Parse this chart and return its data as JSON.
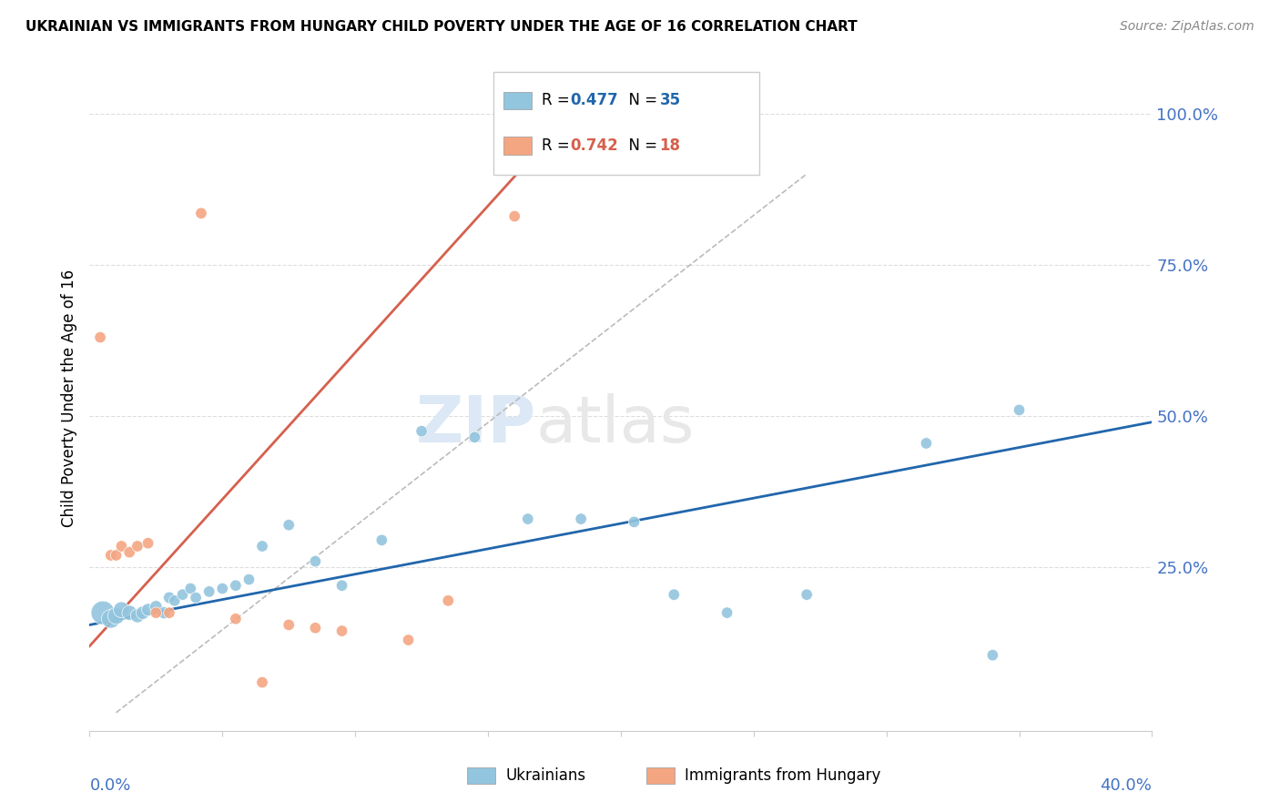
{
  "title": "UKRAINIAN VS IMMIGRANTS FROM HUNGARY CHILD POVERTY UNDER THE AGE OF 16 CORRELATION CHART",
  "source": "Source: ZipAtlas.com",
  "ylabel": "Child Poverty Under the Age of 16",
  "xlim": [
    0.0,
    0.4
  ],
  "ylim": [
    -0.02,
    1.08
  ],
  "watermark_zip": "ZIP",
  "watermark_atlas": "atlas",
  "blue_color": "#92c5de",
  "pink_color": "#f4a582",
  "line_blue_color": "#2166ac",
  "line_pink_color": "#d6604d",
  "line_gray_color": "#bbbbbb",
  "blue_scatter_x": [
    0.005,
    0.008,
    0.01,
    0.012,
    0.015,
    0.018,
    0.02,
    0.022,
    0.025,
    0.028,
    0.03,
    0.032,
    0.035,
    0.038,
    0.04,
    0.045,
    0.05,
    0.055,
    0.06,
    0.065,
    0.075,
    0.085,
    0.095,
    0.11,
    0.125,
    0.145,
    0.165,
    0.185,
    0.205,
    0.22,
    0.24,
    0.27,
    0.315,
    0.34,
    0.35
  ],
  "blue_scatter_y": [
    0.175,
    0.165,
    0.17,
    0.18,
    0.175,
    0.17,
    0.175,
    0.18,
    0.185,
    0.175,
    0.2,
    0.195,
    0.205,
    0.215,
    0.2,
    0.21,
    0.215,
    0.22,
    0.23,
    0.285,
    0.32,
    0.26,
    0.22,
    0.295,
    0.475,
    0.465,
    0.33,
    0.33,
    0.325,
    0.205,
    0.175,
    0.205,
    0.455,
    0.105,
    0.51
  ],
  "blue_scatter_size": [
    350,
    220,
    180,
    160,
    140,
    120,
    110,
    100,
    95,
    90,
    85,
    80,
    80,
    80,
    80,
    80,
    80,
    80,
    80,
    80,
    80,
    80,
    80,
    80,
    80,
    80,
    80,
    80,
    80,
    80,
    80,
    80,
    80,
    80,
    80
  ],
  "pink_scatter_x": [
    0.004,
    0.008,
    0.01,
    0.012,
    0.015,
    0.018,
    0.022,
    0.025,
    0.03,
    0.042,
    0.055,
    0.065,
    0.075,
    0.085,
    0.095,
    0.12,
    0.135,
    0.16
  ],
  "pink_scatter_y": [
    0.63,
    0.27,
    0.27,
    0.285,
    0.275,
    0.285,
    0.29,
    0.175,
    0.175,
    0.835,
    0.165,
    0.06,
    0.155,
    0.15,
    0.145,
    0.13,
    0.195,
    0.83
  ],
  "pink_scatter_size": [
    80,
    80,
    80,
    80,
    80,
    80,
    80,
    80,
    80,
    80,
    80,
    80,
    80,
    80,
    80,
    80,
    80,
    80
  ],
  "blue_line_x": [
    0.0,
    0.4
  ],
  "blue_line_y": [
    0.155,
    0.49
  ],
  "pink_line_x": [
    0.0,
    0.165
  ],
  "pink_line_y": [
    0.12,
    0.92
  ],
  "gray_line_x": [
    0.01,
    0.27
  ],
  "gray_line_y": [
    0.01,
    0.9
  ]
}
